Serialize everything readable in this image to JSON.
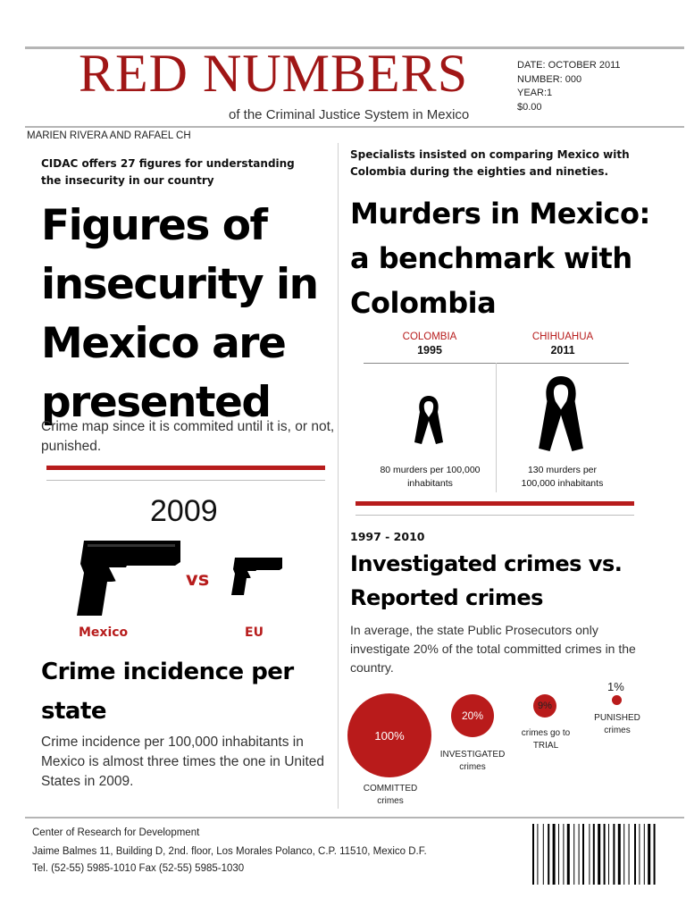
{
  "masthead": {
    "title": "RED NUMBERS",
    "subtitle": "of the Criminal Justice System in Mexico",
    "meta": {
      "date": "DATE: OCTOBER 2011",
      "number": "NUMBER: 000",
      "year": "YEAR:1",
      "price": "$0.00"
    }
  },
  "byline": "MARIEN RIVERA AND RAFAEL CH",
  "left_article": {
    "kicker": "CIDAC offers 27 figures for understanding the insecurity in our country",
    "headline": "Figures of insecurity in Mexico are presented",
    "deck": "Crime map since it is commited until it is, or not, punished.",
    "year": "2009",
    "vs": "vs",
    "gun_left_label": "Mexico",
    "gun_right_label": "EU",
    "subhead": "Crime incidence per state",
    "body": "Crime incidence per 100,000 inhabitants in Mexico is almost three times the one in United States in 2009."
  },
  "right_article": {
    "kicker": "Specialists insisted on comparing Mexico with Colombia during the eighties and nineties.",
    "headline": "Murders in Mexico: a benchmark with Colombia",
    "comparison": [
      {
        "place": "COLOMBIA",
        "year": "1995",
        "caption": "80 murders per 100,000 inhabitants"
      },
      {
        "place": "CHIHUAHUA",
        "year": "2011",
        "caption": "130 murders per 100,000 inhabitants"
      }
    ]
  },
  "crimes_section": {
    "years": "1997 - 2010",
    "headline": "Investigated crimes vs. Reported crimes",
    "body": "In average, the state Public Prosecutors only investigate 20% of the total committed crimes in the country.",
    "circles": [
      {
        "value": "100%",
        "label_top": "COMMITTED",
        "label_bottom": "crimes"
      },
      {
        "value": "20%",
        "label_top": "INVESTIGATED",
        "label_bottom": "crimes"
      },
      {
        "value": "9%",
        "label_top": "crimes go to",
        "label_bottom": "TRIAL"
      },
      {
        "value": "1%",
        "label_top": "PUNISHED",
        "label_bottom": "crimes"
      }
    ]
  },
  "footer": {
    "org": "Center of Research for Development",
    "address": "Jaime Balmes 11, Building D, 2nd. floor, Los Morales Polanco, C.P. 11510, Mexico D.F.",
    "phone": "Tel. (52-55) 5985-1010 Fax (52-55) 5985-1030"
  },
  "colors": {
    "accent": "#b71c1c",
    "rule": "#b5b5b5",
    "text": "#111111"
  },
  "icons": [
    "handgun-icon",
    "black-ribbon-icon",
    "barcode-icon"
  ]
}
